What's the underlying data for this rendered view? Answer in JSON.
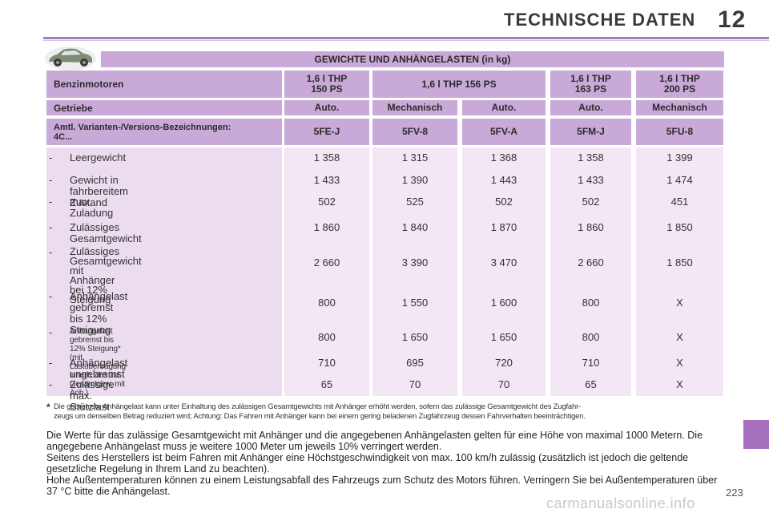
{
  "header": {
    "title": "TECHNISCHE DATEN",
    "chapter": "12"
  },
  "table": {
    "title": "GEWICHTE UND ANHÄNGELASTEN (in kg)",
    "rows_header": [
      {
        "label": "Benzinmotoren",
        "cells": [
          "1,6 l THP\n150 PS",
          "1,6 l THP 156 PS",
          "1,6 l THP\n163 PS",
          "1,6 l THP\n200 PS"
        ]
      },
      {
        "label": "Getriebe",
        "cells": [
          "Auto.",
          "Mechanisch",
          "Auto.",
          "Auto.",
          "Mechanisch"
        ]
      },
      {
        "label": "Amtl. Varianten-/Versions-Bezeichnungen:\n4C...",
        "cells": [
          "5FE-J",
          "5FV-8",
          "5FV-A",
          "5FM-J",
          "5FU-8"
        ]
      }
    ],
    "rows": [
      {
        "label": "Leergewicht",
        "values": [
          "1 358",
          "1 315",
          "1 368",
          "1 358",
          "1 399"
        ]
      },
      {
        "label": "Gewicht in fahrbereitem Zustand",
        "values": [
          "1 433",
          "1 390",
          "1 443",
          "1 433",
          "1 474"
        ]
      },
      {
        "label": "max. Zuladung",
        "values": [
          "502",
          "525",
          "502",
          "502",
          "451"
        ]
      },
      {
        "label": "Zulässiges Gesamtgewicht",
        "values": [
          "1 860",
          "1 840",
          "1 870",
          "1 860",
          "1 850"
        ]
      },
      {
        "label": "Zulässiges Gesamtgewicht mit\nAnhänger\nbei 12% Steigung",
        "values": [
          "2 660",
          "3 390",
          "3 470",
          "2 660",
          "1 850"
        ]
      },
      {
        "label": "Anhängelast gebremst\nbis 12% Steigung",
        "values": [
          "800",
          "1 550",
          "1 600",
          "800",
          "X"
        ]
      },
      {
        "label": "Anhängelast gebremst bis 12% Steigung* (mit\nLastübertragung innerh. des zul. Gesamtgew. mit Anh.)",
        "values": [
          "800",
          "1 650",
          "1 650",
          "800",
          "X"
        ]
      },
      {
        "label": "Anhängelast ungebremst",
        "values": [
          "710",
          "695",
          "720",
          "710",
          "X"
        ]
      },
      {
        "label": "Zulässige max. Stützlast",
        "values": [
          "65",
          "70",
          "70",
          "65",
          "X"
        ]
      }
    ],
    "dash": "-"
  },
  "footnote": {
    "star": "*",
    "line1": "Die gebremste Anhängelast kann unter Einhaltung des zulässigen Gesamtgewichts mit Anhänger erhöht werden, sofern das zulässige Gesamtgewicht des Zugfahr-",
    "line2": "zeugs um denselben Betrag reduziert wird; Achtung: Das Fahren mit Anhänger kann bei einem gering beladenen Zugfahrzeug dessen Fahrverhalten beeinträchtigen."
  },
  "paragraphs": [
    "Die Werte für das zulässige Gesamtgewicht mit Anhänger und die angegebenen Anhängelasten gelten für eine Höhe von maximal 1000 Metern. Die angegebene Anhängelast muss je weitere 1000 Meter um jeweils 10% verringert werden.",
    "Seitens des Herstellers ist beim Fahren mit Anhänger eine Höchstgeschwindigkeit von max. 100 km/h zulässig (zusätzlich ist jedoch die geltende gesetzliche Regelung in Ihrem Land zu beachten).",
    "Hohe Außentemperaturen können zu einem Leistungsabfall des Fahrzeugs zum Schutz des Motors führen. Verringern Sie bei Außentemperaturen über 37 °C bitte die Anhängelast."
  ],
  "page_number": "223",
  "watermark": "carmanualsonline.info",
  "colors": {
    "header_purple": "#c9a9d8",
    "body_pink": "#f3e6f5",
    "accent": "#a56fbe"
  },
  "icons": {
    "car": "car-icon"
  }
}
